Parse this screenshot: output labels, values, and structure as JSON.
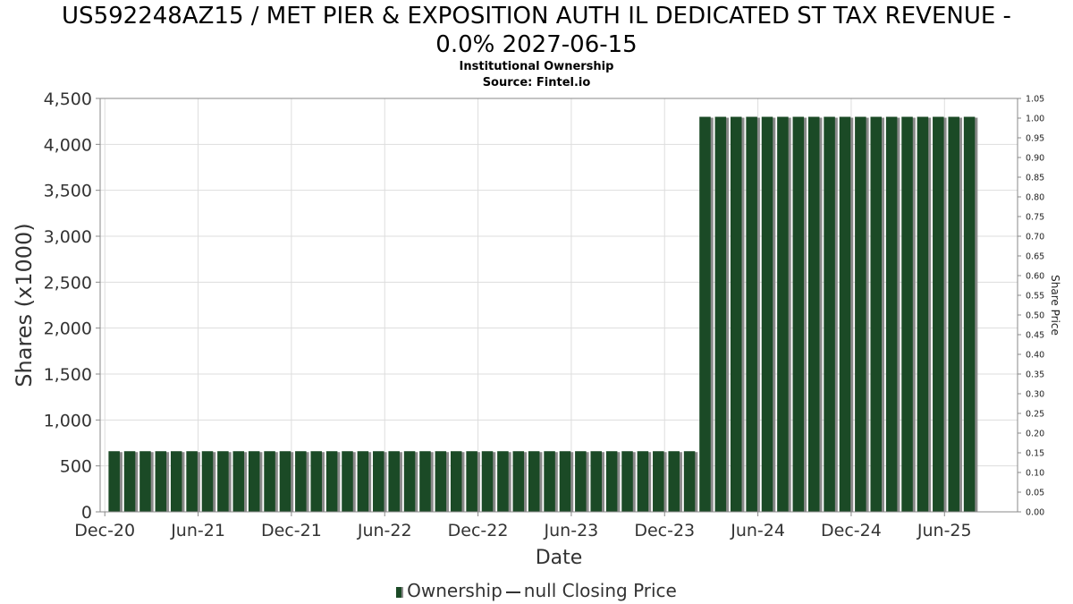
{
  "header": {
    "title_line1": "US592248AZ15 / MET PIER & EXPOSITION AUTH IL DEDICATED ST TAX REVENUE -",
    "title_line2": "0.0% 2027-06-15",
    "subtitle1": "Institutional Ownership",
    "subtitle2": "Source: Fintel.io"
  },
  "legend": {
    "ownership": "Ownership",
    "price": "null Closing Price"
  },
  "colors": {
    "bar": "#1b4a26",
    "bar_shadow": "#8a8a8a",
    "grid": "#dddddd",
    "axis": "#888888",
    "text": "#333333"
  },
  "chart_data": {
    "type": "bar",
    "title": "US592248AZ15 / MET PIER & EXPOSITION AUTH IL DEDICATED ST TAX REVENUE - 0.0% 2027-06-15",
    "xlabel": "Date",
    "ylabel": "Shares (x1000)",
    "y2label": "Share Price",
    "ylim": [
      0,
      4500
    ],
    "y2lim": [
      0,
      1.05
    ],
    "yticks": [
      "0",
      "500",
      "1,000",
      "1,500",
      "2,000",
      "2,500",
      "3,000",
      "3,500",
      "4,000",
      "4,500"
    ],
    "yticks_values": [
      0,
      500,
      1000,
      1500,
      2000,
      2500,
      3000,
      3500,
      4000,
      4500
    ],
    "y2ticks": [
      "0.00",
      "0.05",
      "0.10",
      "0.15",
      "0.20",
      "0.25",
      "0.30",
      "0.35",
      "0.40",
      "0.45",
      "0.50",
      "0.55",
      "0.60",
      "0.65",
      "0.70",
      "0.75",
      "0.80",
      "0.85",
      "0.90",
      "0.95",
      "1.00",
      "1.05"
    ],
    "xlim_months": [
      -0.3,
      58.7
    ],
    "xticks": [
      "Dec-20",
      "Jun-21",
      "Dec-21",
      "Jun-22",
      "Dec-22",
      "Jun-23",
      "Dec-23",
      "Jun-24",
      "Dec-24",
      "Jun-25"
    ],
    "xticks_months": [
      0,
      6,
      12,
      18,
      24,
      30,
      36,
      42,
      48,
      54
    ],
    "bars_start_month": 0.6,
    "bars_month_step": 1,
    "values": [
      660,
      660,
      660,
      660,
      660,
      660,
      660,
      660,
      660,
      660,
      660,
      660,
      660,
      660,
      660,
      660,
      660,
      660,
      660,
      660,
      660,
      660,
      660,
      660,
      660,
      660,
      660,
      660,
      660,
      660,
      660,
      660,
      660,
      660,
      660,
      660,
      660,
      660,
      4300,
      4300,
      4300,
      4300,
      4300,
      4300,
      4300,
      4300,
      4300,
      4300,
      4300,
      4300,
      4300,
      4300,
      4300,
      4300,
      4300,
      4300
    ],
    "grid": true,
    "legend_position": "bottom-center",
    "series": [
      {
        "name": "Ownership",
        "kind": "bar"
      },
      {
        "name": "null Closing Price",
        "kind": "line",
        "values": []
      }
    ]
  }
}
